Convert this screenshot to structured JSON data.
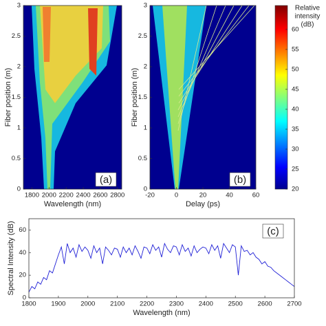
{
  "chart_data": [
    {
      "type": "heatmap",
      "xlabel": "Wavelength (nm)",
      "ylabel": "Fiber position (m)",
      "annotation": "(a)",
      "xlim": [
        1700,
        2850
      ],
      "xticks": [
        1800,
        2000,
        2200,
        2400,
        2600,
        2800
      ],
      "ylim": [
        0,
        3
      ],
      "yticks": [
        0,
        0.5,
        1,
        1.5,
        2,
        2.5,
        3
      ]
    },
    {
      "type": "heatmap",
      "xlabel": "Delay (ps)",
      "ylabel": "Fiber position (m)",
      "annotation": "(b)",
      "xlim": [
        -20,
        60
      ],
      "xticks": [
        -20,
        0,
        20,
        40,
        60
      ],
      "ylim": [
        0,
        3
      ],
      "yticks": [
        0,
        0.5,
        1,
        1.5,
        2,
        2.5,
        3
      ],
      "colorbar": {
        "label": [
          "Relative",
          "intensity",
          "(dB)"
        ],
        "lim": [
          20,
          66
        ],
        "ticks": [
          20,
          25,
          30,
          35,
          40,
          45,
          50,
          55,
          60
        ]
      }
    },
    {
      "type": "line",
      "xlabel": "Wavelength (nm)",
      "ylabel": "Spectral Intensity (dB)",
      "annotation": "(c)",
      "xlim": [
        1800,
        2700
      ],
      "xticks": [
        1800,
        1900,
        2000,
        2100,
        2200,
        2300,
        2400,
        2500,
        2600,
        2700
      ],
      "ylim": [
        0,
        70
      ],
      "yticks": [
        0,
        20,
        40,
        60
      ],
      "series": [
        {
          "color": "#1f1fd6",
          "x": [
            1800,
            1810,
            1820,
            1830,
            1840,
            1850,
            1860,
            1870,
            1880,
            1890,
            1900,
            1910,
            1920,
            1930,
            1940,
            1950,
            1960,
            1970,
            1980,
            1990,
            2000,
            2010,
            2020,
            2030,
            2040,
            2050,
            2060,
            2070,
            2080,
            2090,
            2100,
            2110,
            2120,
            2130,
            2140,
            2150,
            2160,
            2170,
            2180,
            2190,
            2200,
            2210,
            2220,
            2230,
            2240,
            2250,
            2260,
            2270,
            2280,
            2290,
            2300,
            2310,
            2320,
            2330,
            2340,
            2350,
            2360,
            2370,
            2380,
            2390,
            2400,
            2410,
            2420,
            2430,
            2440,
            2450,
            2460,
            2470,
            2480,
            2490,
            2500,
            2510,
            2520,
            2530,
            2540,
            2550,
            2560,
            2570,
            2580,
            2590,
            2600,
            2610,
            2620,
            2630,
            2640,
            2650,
            2660,
            2670,
            2680,
            2690,
            2700
          ],
          "values": [
            5,
            10,
            8,
            14,
            12,
            18,
            16,
            24,
            22,
            30,
            38,
            45,
            30,
            48,
            40,
            44,
            36,
            47,
            41,
            45,
            42,
            35,
            46,
            40,
            44,
            30,
            45,
            42,
            38,
            44,
            43,
            36,
            45,
            40,
            44,
            38,
            46,
            41,
            35,
            45,
            44,
            39,
            47,
            42,
            45,
            36,
            48,
            43,
            40,
            46,
            45,
            38,
            47,
            41,
            44,
            37,
            46,
            40,
            43,
            45,
            44,
            39,
            47,
            42,
            46,
            35,
            48,
            44,
            40,
            47,
            45,
            20,
            46,
            41,
            42,
            38,
            40,
            36,
            34,
            30,
            32,
            28,
            27,
            24,
            22,
            20,
            18,
            16,
            14,
            12,
            10
          ]
        }
      ]
    }
  ]
}
